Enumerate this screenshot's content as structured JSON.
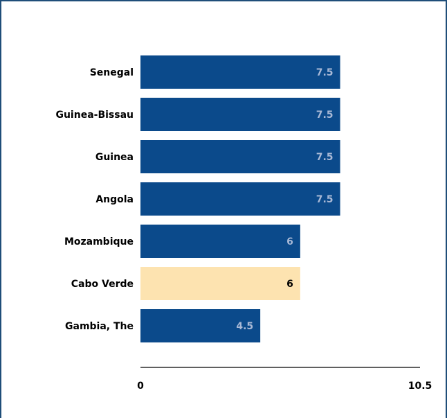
{
  "chart_data": {
    "type": "bar",
    "orientation": "horizontal",
    "categories": [
      "Senegal",
      "Guinea-Bissau",
      "Guinea",
      "Angola",
      "Mozambique",
      "Cabo Verde",
      "Gambia, The"
    ],
    "values": [
      7.5,
      7.5,
      7.5,
      7.5,
      6,
      6,
      4.5
    ],
    "colors": [
      "#0b4a8b",
      "#0b4a8b",
      "#0b4a8b",
      "#0b4a8b",
      "#0b4a8b",
      "#fde3b0",
      "#0b4a8b"
    ],
    "xlim": [
      0,
      10.5
    ],
    "xticks": [
      0,
      10.5
    ],
    "grid": false
  }
}
